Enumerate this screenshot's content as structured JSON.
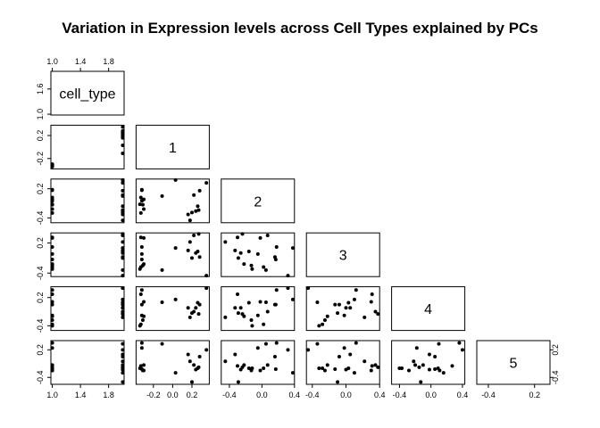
{
  "chart_data": {
    "type": "scatter",
    "subtype": "pairs-lower-triangle",
    "title": "Variation in Expression levels across Cell Types explained by PCs",
    "variables": [
      "cell_type",
      "1",
      "2",
      "3",
      "4",
      "5"
    ],
    "axes": {
      "cell_type": {
        "lim": [
          0.98,
          2.02
        ],
        "ticks": [
          1.0,
          1.4,
          1.8
        ],
        "tick_labels": [
          "1.0",
          "1.4",
          "1.8"
        ]
      },
      "1": {
        "lim": [
          -0.38,
          0.38
        ],
        "ticks": [
          -0.2,
          0.0,
          0.2
        ],
        "tick_labels": [
          "-0.2",
          "0.0",
          "0.2"
        ]
      },
      "2": {
        "lim": [
          -0.5,
          0.4
        ],
        "ticks": [
          -0.4,
          0.0,
          0.4
        ],
        "tick_labels": [
          "-0.4",
          "0.0",
          "0.4"
        ]
      },
      "3": {
        "lim": [
          -0.47,
          0.4
        ],
        "ticks": [
          -0.4,
          0.0,
          0.4
        ],
        "tick_labels": [
          "-0.4",
          "0.0",
          "0.4"
        ]
      },
      "4": {
        "lim": [
          -0.5,
          0.43
        ],
        "ticks": [
          -0.4,
          0.0,
          0.4
        ],
        "tick_labels": [
          "-0.4",
          "0.0",
          "0.4"
        ]
      },
      "5": {
        "lim": [
          -0.55,
          0.4
        ],
        "ticks": [
          -0.4,
          0.2
        ],
        "tick_labels": [
          "-0.4",
          "0.2"
        ]
      }
    },
    "left_tick_labels": {
      "cell_type": [
        "1.0",
        "1.6"
      ],
      "1": [
        "-0.2",
        "0.2"
      ],
      "2": [
        "-0.4",
        "0.2"
      ],
      "3": [
        "-0.4",
        "0.2"
      ],
      "4": [
        "-0.4",
        "0.2"
      ],
      "5": [
        "-0.4",
        "0.2"
      ]
    },
    "observations": {
      "cell_type": [
        1,
        1,
        1,
        1,
        1,
        1,
        1,
        1,
        1,
        2,
        2,
        2,
        2,
        2,
        2,
        2,
        2,
        2,
        2,
        2
      ],
      "1": [
        -0.34,
        -0.33,
        -0.33,
        -0.32,
        -0.32,
        -0.31,
        -0.3,
        -0.3,
        -0.32,
        0.27,
        0.26,
        0.28,
        0.18,
        0.16,
        0.2,
        -0.11,
        0.03,
        0.22,
        0.35,
        0.24
      ],
      "2": [
        -0.12,
        -0.3,
        0.02,
        0.17,
        -0.05,
        -0.13,
        -0.02,
        -0.22,
        0.18,
        -0.24,
        -0.16,
        0.16,
        -0.45,
        -0.33,
        -0.29,
        0.05,
        0.38,
        0.07,
        0.32,
        -0.26
      ],
      "3": [
        -0.32,
        0.31,
        -0.28,
        -0.13,
        -0.02,
        -0.25,
        0.3,
        -0.22,
        0.12,
        0.38,
        0.03,
        -0.08,
        0.22,
        0.05,
        -0.1,
        -0.34,
        0.1,
        0.35,
        -0.45,
        0.0
      ],
      "4": [
        -0.4,
        0.27,
        -0.37,
        0.05,
        -0.18,
        -0.28,
        0.11,
        -0.2,
        0.36,
        -0.15,
        0.09,
        0.05,
        -0.22,
        -0.02,
        -0.13,
        0.1,
        0.16,
        -0.1,
        0.4,
        -0.02
      ],
      "5": [
        -0.2,
        -0.15,
        -0.2,
        -0.22,
        0.24,
        -0.25,
        -0.25,
        -0.13,
        0.35,
        -0.18,
        -0.2,
        0.05,
        -0.05,
        0.1,
        -0.5,
        0.33,
        -0.3,
        -0.13,
        0.2,
        -0.23
      ]
    }
  }
}
